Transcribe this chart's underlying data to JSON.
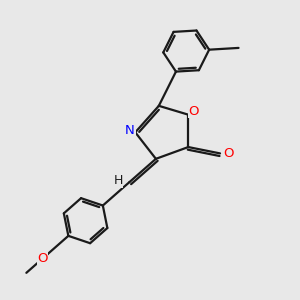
{
  "bg_color": "#e8e8e8",
  "bond_color": "#1a1a1a",
  "N_color": "#0000ff",
  "O_color": "#ff0000",
  "font_color": "#1a1a1a",
  "line_width": 1.6,
  "figsize": [
    3.0,
    3.0
  ],
  "dpi": 100,
  "xlim": [
    0,
    10
  ],
  "ylim": [
    0,
    10
  ]
}
